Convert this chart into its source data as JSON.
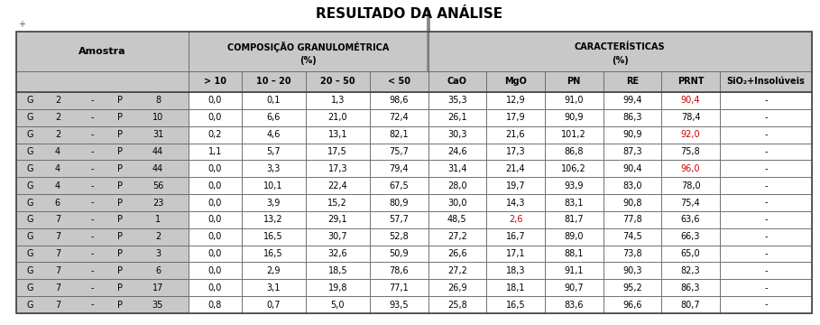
{
  "title": "RESULTADO DA ANÁLISE",
  "header_amostra": "Amostra",
  "header_comp_line1": "COMPOSIÇÃO GRANULOMÉTRICA",
  "header_comp_line2": "(%)",
  "header_carac_line1": "CARACTERÍSTICAS",
  "header_carac_line2": "(%)",
  "subheaders_comp": [
    "> 10",
    "10 – 20",
    "20 – 50",
    "< 50"
  ],
  "subheaders_carac": [
    "CaO",
    "MgO",
    "PN",
    "RE",
    "PRNT",
    "SiO₂+Insolúveis"
  ],
  "rows": [
    {
      "amostra": [
        "G",
        "2",
        "-",
        "P",
        "8"
      ],
      "comp": [
        "0,0",
        "0,1",
        "1,3",
        "98,6"
      ],
      "carac": [
        "35,3",
        "12,9",
        "91,0",
        "99,4",
        "90,4",
        "-"
      ],
      "red_carac": [
        4
      ]
    },
    {
      "amostra": [
        "G",
        "2",
        "-",
        "P",
        "10"
      ],
      "comp": [
        "0,0",
        "6,6",
        "21,0",
        "72,4"
      ],
      "carac": [
        "26,1",
        "17,9",
        "90,9",
        "86,3",
        "78,4",
        "-"
      ],
      "red_carac": []
    },
    {
      "amostra": [
        "G",
        "2",
        "-",
        "P",
        "31"
      ],
      "comp": [
        "0,2",
        "4,6",
        "13,1",
        "82,1"
      ],
      "carac": [
        "30,3",
        "21,6",
        "101,2",
        "90,9",
        "92,0",
        "-"
      ],
      "red_carac": [
        4
      ]
    },
    {
      "amostra": [
        "G",
        "4",
        "-",
        "P",
        "44"
      ],
      "comp": [
        "1,1",
        "5,7",
        "17,5",
        "75,7"
      ],
      "carac": [
        "24,6",
        "17,3",
        "86,8",
        "87,3",
        "75,8",
        "-"
      ],
      "red_carac": []
    },
    {
      "amostra": [
        "G",
        "4",
        "-",
        "P",
        "44"
      ],
      "comp": [
        "0,0",
        "3,3",
        "17,3",
        "79,4"
      ],
      "carac": [
        "31,4",
        "21,4",
        "106,2",
        "90,4",
        "96,0",
        "-"
      ],
      "red_carac": [
        4
      ]
    },
    {
      "amostra": [
        "G",
        "4",
        "-",
        "P",
        "56"
      ],
      "comp": [
        "0,0",
        "10,1",
        "22,4",
        "67,5"
      ],
      "carac": [
        "28,0",
        "19,7",
        "93,9",
        "83,0",
        "78,0",
        "-"
      ],
      "red_carac": []
    },
    {
      "amostra": [
        "G",
        "6",
        "-",
        "P",
        "23"
      ],
      "comp": [
        "0,0",
        "3,9",
        "15,2",
        "80,9"
      ],
      "carac": [
        "30,0",
        "14,3",
        "83,1",
        "90,8",
        "75,4",
        "-"
      ],
      "red_carac": []
    },
    {
      "amostra": [
        "G",
        "7",
        "-",
        "P",
        "1"
      ],
      "comp": [
        "0,0",
        "13,2",
        "29,1",
        "57,7"
      ],
      "carac": [
        "48,5",
        "2,6",
        "81,7",
        "77,8",
        "63,6",
        "-"
      ],
      "red_carac": [
        1
      ]
    },
    {
      "amostra": [
        "G",
        "7",
        "-",
        "P",
        "2"
      ],
      "comp": [
        "0,0",
        "16,5",
        "30,7",
        "52,8"
      ],
      "carac": [
        "27,2",
        "16,7",
        "89,0",
        "74,5",
        "66,3",
        "-"
      ],
      "red_carac": []
    },
    {
      "amostra": [
        "G",
        "7",
        "-",
        "P",
        "3"
      ],
      "comp": [
        "0,0",
        "16,5",
        "32,6",
        "50,9"
      ],
      "carac": [
        "26,6",
        "17,1",
        "88,1",
        "73,8",
        "65,0",
        "-"
      ],
      "red_carac": []
    },
    {
      "amostra": [
        "G",
        "7",
        "-",
        "P",
        "6"
      ],
      "comp": [
        "0,0",
        "2,9",
        "18,5",
        "78,6"
      ],
      "carac": [
        "27,2",
        "18,3",
        "91,1",
        "90,3",
        "82,3",
        "-"
      ],
      "red_carac": []
    },
    {
      "amostra": [
        "G",
        "7",
        "-",
        "P",
        "17"
      ],
      "comp": [
        "0,0",
        "3,1",
        "19,8",
        "77,1"
      ],
      "carac": [
        "26,9",
        "18,1",
        "90,7",
        "95,2",
        "86,3",
        "-"
      ],
      "red_carac": []
    },
    {
      "amostra": [
        "G",
        "7",
        "-",
        "P",
        "35"
      ],
      "comp": [
        "0,8",
        "0,7",
        "5,0",
        "93,5"
      ],
      "carac": [
        "25,8",
        "16,5",
        "83,6",
        "96,6",
        "80,7",
        "-"
      ],
      "red_carac": []
    }
  ],
  "header_bg": "#c8c8c8",
  "data_bg": "#ffffff",
  "border_color": "#666666",
  "text_color": "#000000",
  "red_color": "#cc0000",
  "title_fontsize": 11,
  "header_fontsize": 7,
  "cell_fontsize": 7,
  "fig_width": 9.09,
  "fig_height": 3.6,
  "dpi": 100
}
